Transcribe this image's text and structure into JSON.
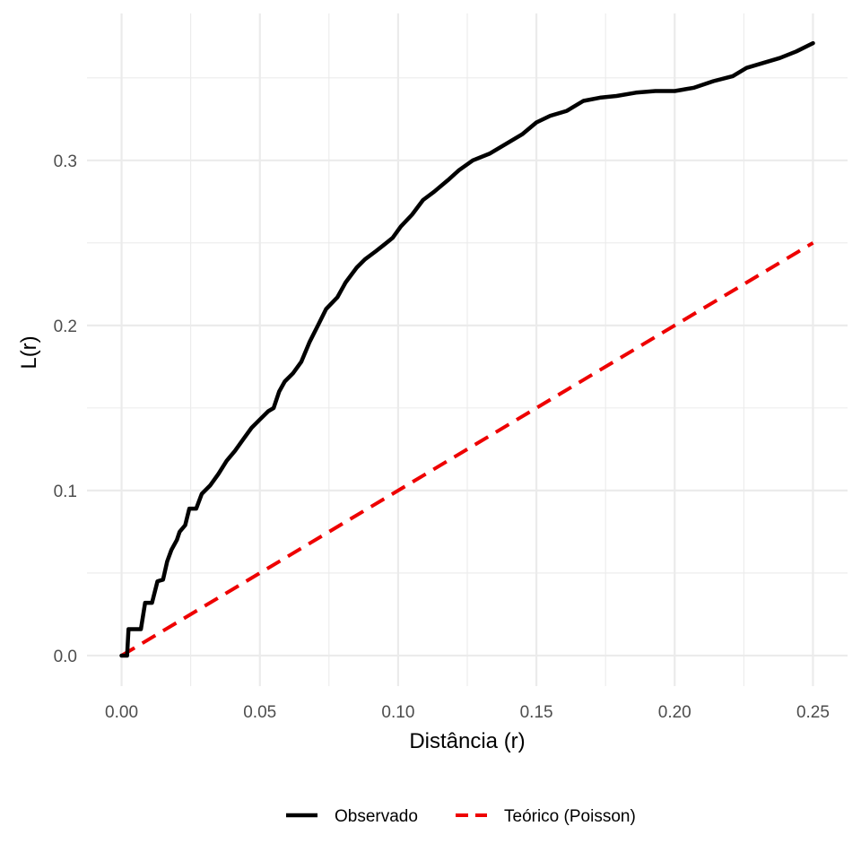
{
  "chart_data": {
    "type": "line",
    "title": "",
    "xlabel": "Distância (r)",
    "ylabel": "L(r)",
    "xlim": [
      -0.0125,
      0.2625
    ],
    "ylim": [
      -0.0185,
      0.389
    ],
    "x_ticks": [
      0.0,
      0.05,
      0.1,
      0.15,
      0.2,
      0.25
    ],
    "x_tick_labels": [
      "0.00",
      "0.05",
      "0.10",
      "0.15",
      "0.20",
      "0.25"
    ],
    "y_ticks": [
      0.0,
      0.1,
      0.2,
      0.3
    ],
    "y_tick_labels": [
      "0.0",
      "0.1",
      "0.2",
      "0.3"
    ],
    "grid": true,
    "legend_position": "bottom",
    "series": [
      {
        "name": "Observado",
        "color": "#000000",
        "style": "solid",
        "points": [
          [
            0.0,
            0.0
          ],
          [
            0.002,
            0.0
          ],
          [
            0.0025,
            0.016
          ],
          [
            0.0045,
            0.016
          ],
          [
            0.007,
            0.016
          ],
          [
            0.0085,
            0.032
          ],
          [
            0.011,
            0.032
          ],
          [
            0.013,
            0.045
          ],
          [
            0.015,
            0.046
          ],
          [
            0.0165,
            0.057
          ],
          [
            0.018,
            0.064
          ],
          [
            0.02,
            0.07
          ],
          [
            0.021,
            0.075
          ],
          [
            0.023,
            0.079
          ],
          [
            0.0245,
            0.089
          ],
          [
            0.027,
            0.089
          ],
          [
            0.029,
            0.098
          ],
          [
            0.032,
            0.103
          ],
          [
            0.035,
            0.11
          ],
          [
            0.038,
            0.118
          ],
          [
            0.041,
            0.124
          ],
          [
            0.044,
            0.131
          ],
          [
            0.047,
            0.138
          ],
          [
            0.05,
            0.143
          ],
          [
            0.053,
            0.148
          ],
          [
            0.055,
            0.15
          ],
          [
            0.057,
            0.16
          ],
          [
            0.059,
            0.166
          ],
          [
            0.062,
            0.171
          ],
          [
            0.065,
            0.178
          ],
          [
            0.068,
            0.19
          ],
          [
            0.071,
            0.2
          ],
          [
            0.074,
            0.21
          ],
          [
            0.078,
            0.217
          ],
          [
            0.081,
            0.226
          ],
          [
            0.085,
            0.235
          ],
          [
            0.088,
            0.24
          ],
          [
            0.092,
            0.245
          ],
          [
            0.095,
            0.249
          ],
          [
            0.098,
            0.253
          ],
          [
            0.101,
            0.26
          ],
          [
            0.105,
            0.267
          ],
          [
            0.109,
            0.276
          ],
          [
            0.113,
            0.281
          ],
          [
            0.118,
            0.288
          ],
          [
            0.122,
            0.294
          ],
          [
            0.127,
            0.3
          ],
          [
            0.133,
            0.304
          ],
          [
            0.139,
            0.31
          ],
          [
            0.145,
            0.316
          ],
          [
            0.15,
            0.323
          ],
          [
            0.155,
            0.327
          ],
          [
            0.161,
            0.33
          ],
          [
            0.167,
            0.336
          ],
          [
            0.173,
            0.338
          ],
          [
            0.179,
            0.339
          ],
          [
            0.186,
            0.341
          ],
          [
            0.193,
            0.342
          ],
          [
            0.2,
            0.342
          ],
          [
            0.207,
            0.344
          ],
          [
            0.214,
            0.348
          ],
          [
            0.221,
            0.351
          ],
          [
            0.226,
            0.356
          ],
          [
            0.232,
            0.359
          ],
          [
            0.238,
            0.362
          ],
          [
            0.244,
            0.366
          ],
          [
            0.25,
            0.371
          ]
        ]
      },
      {
        "name": "Teórico (Poisson)",
        "color": "#ee0000",
        "style": "dashed",
        "points": [
          [
            0.0,
            0.0
          ],
          [
            0.25,
            0.25
          ]
        ]
      }
    ]
  }
}
